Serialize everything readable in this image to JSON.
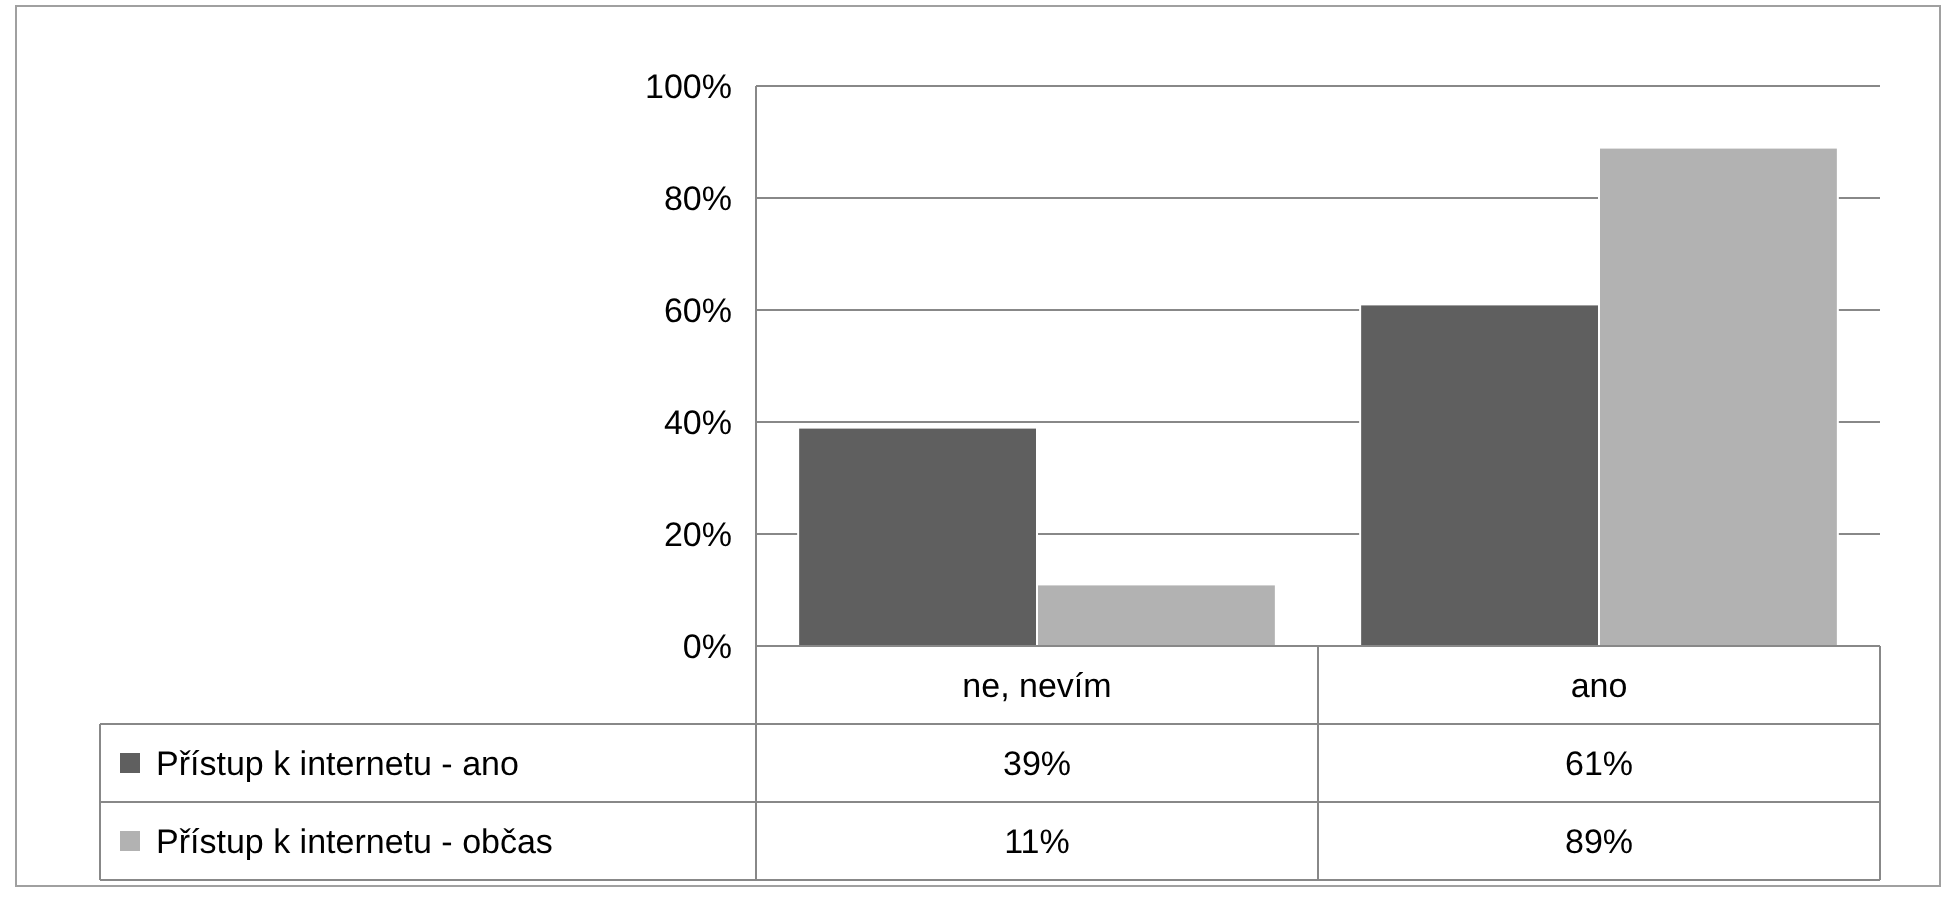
{
  "chart_data": {
    "type": "bar",
    "categories": [
      "ne, nevím",
      "ano"
    ],
    "series": [
      {
        "name": "Přístup k internetu - ano",
        "color": "#5f5f5f",
        "values": [
          39,
          61
        ],
        "value_labels": [
          "39%",
          "61%"
        ]
      },
      {
        "name": "Přístup k internetu - občas",
        "color": "#b2b2b2",
        "values": [
          11,
          89
        ],
        "value_labels": [
          "11%",
          "89%"
        ]
      }
    ],
    "ylim": [
      0,
      100
    ],
    "yticks": [
      {
        "value": 0,
        "label": "0%"
      },
      {
        "value": 20,
        "label": "20%"
      },
      {
        "value": 40,
        "label": "40%"
      },
      {
        "value": 60,
        "label": "60%"
      },
      {
        "value": 80,
        "label": "80%"
      },
      {
        "value": 100,
        "label": "100%"
      }
    ],
    "grid": "y",
    "legend": "bottom"
  }
}
